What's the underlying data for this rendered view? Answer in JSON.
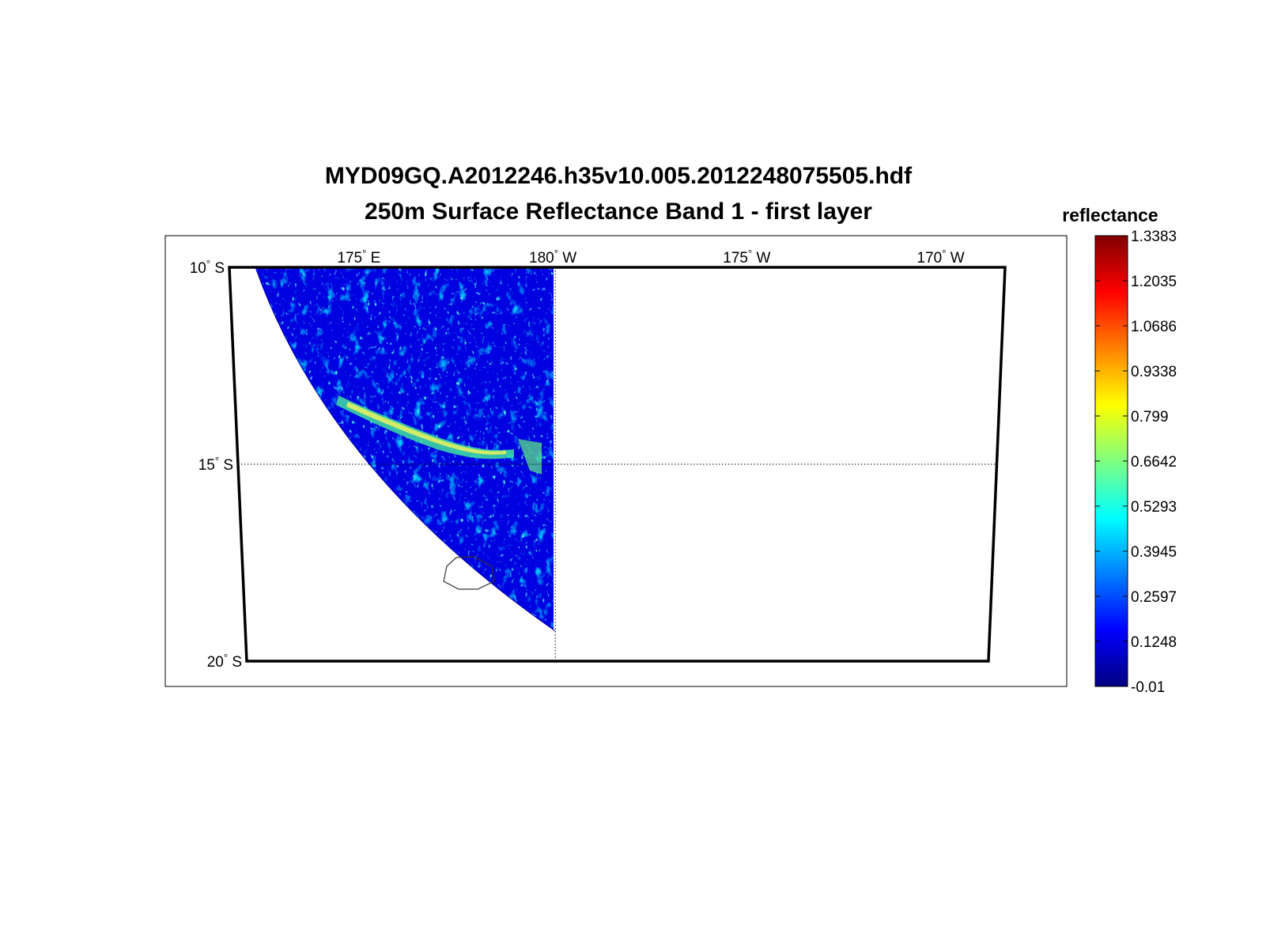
{
  "figure": {
    "title_line1": "MYD09GQ.A2012246.h35v10.005.2012248075505.hdf",
    "title_line2": "250m Surface Reflectance Band 1 - first layer"
  },
  "map": {
    "lon_ticks": [
      {
        "lon": 175,
        "label": "175",
        "hemisphere": "E"
      },
      {
        "lon": 180,
        "label": "180",
        "hemisphere": "W"
      },
      {
        "lon": -175,
        "label": "175",
        "hemisphere": "W"
      },
      {
        "lon": -170,
        "label": "170",
        "hemisphere": "W"
      }
    ],
    "lat_ticks": [
      {
        "lat": -10,
        "label": "10",
        "hemisphere": "S"
      },
      {
        "lat": -15,
        "label": "15",
        "hemisphere": "S"
      },
      {
        "lat": -20,
        "label": "20",
        "hemisphere": "S"
      }
    ],
    "lat_range": [
      -20,
      -10
    ],
    "lon_range": [
      171.7,
      -168.3
    ],
    "swath_east_edge_lon": 180,
    "grid_lines": "dotted at 15 S and 180",
    "background_color": "#0000e0"
  },
  "colorbar": {
    "label": "reflectance",
    "colormap": "jet",
    "min": -0.01,
    "max": 1.3383,
    "ticks": [
      "1.3383",
      "1.2035",
      "1.0686",
      "0.9338",
      "0.799",
      "0.6642",
      "0.5293",
      "0.3945",
      "0.2597",
      "0.1248",
      "-0.01"
    ],
    "colors": [
      "#000080",
      "#0000ff",
      "#0080ff",
      "#00ffff",
      "#80ff80",
      "#ffff00",
      "#ff8000",
      "#ff0000",
      "#800000"
    ]
  }
}
